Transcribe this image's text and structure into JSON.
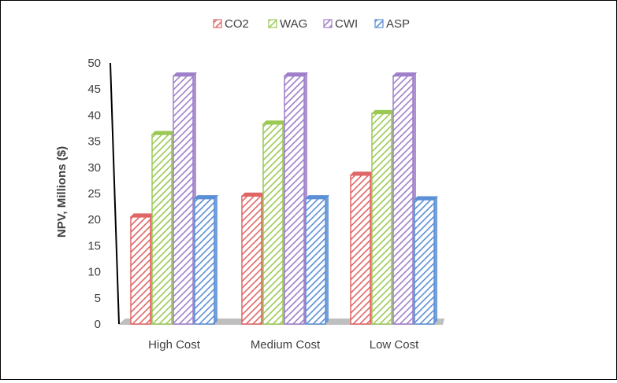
{
  "chart_data": {
    "type": "bar",
    "title": "",
    "xlabel": "",
    "ylabel": "NPV,  Millions ($)",
    "ylim": [
      0,
      50
    ],
    "yticks": [
      0,
      5,
      10,
      15,
      20,
      25,
      30,
      35,
      40,
      45,
      50
    ],
    "grid": false,
    "legend_position": "top",
    "categories": [
      "High Cost",
      "Medium Cost",
      "Low Cost"
    ],
    "series": [
      {
        "name": "CO2",
        "color": "#e06666",
        "values": [
          20.5,
          24.5,
          28.5
        ]
      },
      {
        "name": "WAG",
        "color": "#9bc955",
        "values": [
          36.3,
          38.3,
          40.3
        ]
      },
      {
        "name": "CWI",
        "color": "#9f7fc9",
        "values": [
          47.5,
          47.5,
          47.5
        ]
      },
      {
        "name": "ASP",
        "color": "#5b8fd6",
        "values": [
          24.0,
          24.0,
          23.8
        ]
      }
    ]
  }
}
